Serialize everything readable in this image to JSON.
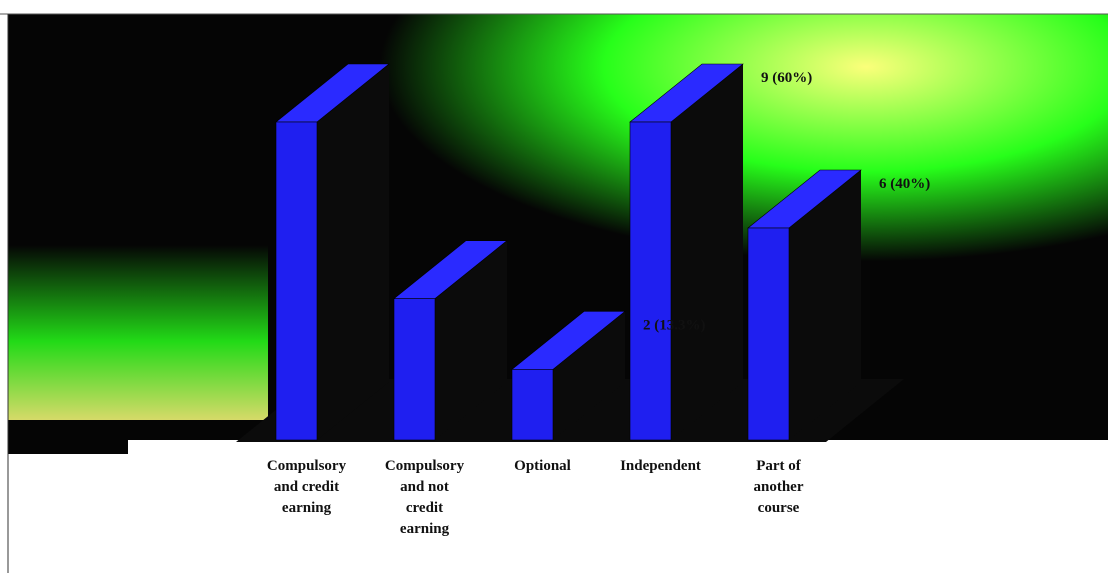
{
  "colors": {
    "bar_front": "#1f1ff0",
    "bar_top": "#2a2aff",
    "bar_side": "#0b0b0b",
    "floor": "#0b0b0b",
    "bg_dark": "#050505",
    "bg_green": "#27ff1a",
    "bg_yellow": "#fbff7a",
    "label_text": "#111111"
  },
  "chart_data": {
    "type": "bar",
    "categories": [
      "Compulsory and credit earning",
      "Compulsory and not credit earning",
      "Optional",
      "Independent",
      "Part of another course"
    ],
    "category_lines": [
      [
        "Compulsory",
        "and credit",
        "earning"
      ],
      [
        "Compulsory",
        "and not",
        "credit",
        "earning"
      ],
      [
        "Optional"
      ],
      [
        "Independent"
      ],
      [
        "Part of",
        "another",
        "course"
      ]
    ],
    "values": [
      9,
      4,
      2,
      9,
      6
    ],
    "data_labels": [
      "",
      "",
      "2 (13.3%)",
      "9 (60%)",
      "6 (40%)"
    ],
    "ylim": [
      0,
      9
    ],
    "grid": false,
    "legend": "none"
  }
}
